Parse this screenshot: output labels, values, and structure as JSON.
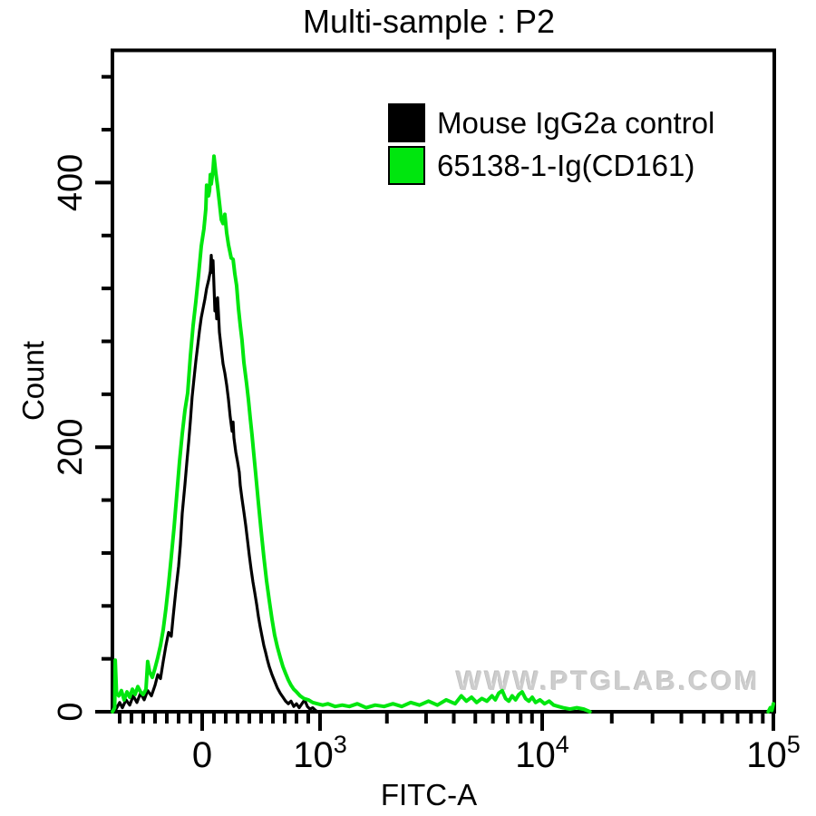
{
  "watermark": {
    "text": "WWW.PTGLAB.COM",
    "color": "#cdcdcd"
  },
  "chart_data": {
    "type": "line",
    "subtype": "flow-cytometry-histogram-overlay",
    "title": "Multi-sample : P2",
    "xlabel": "FITC-A",
    "ylabel": "Count",
    "x_scale": "logicle",
    "xlim": [
      -760,
      100000
    ],
    "ylim": [
      0,
      500
    ],
    "grid": false,
    "legend_position": "top-right-inside",
    "y_major_ticks": [
      0,
      200,
      400
    ],
    "y_minor_ticks": [
      40,
      80,
      120,
      160,
      240,
      280,
      320,
      360,
      440,
      480
    ],
    "x_major_ticks": [
      {
        "value": 0,
        "label": "0",
        "exp": ""
      },
      {
        "value": 1000,
        "label": "10",
        "exp": "3"
      },
      {
        "value": 10000,
        "label": "10",
        "exp": "4"
      },
      {
        "value": 100000,
        "label": "10",
        "exp": "5"
      }
    ],
    "x_minor_ticks": [
      -700,
      -600,
      -500,
      -400,
      -300,
      -200,
      -100,
      100,
      200,
      300,
      400,
      500,
      600,
      700,
      800,
      900,
      2000,
      3000,
      4000,
      5000,
      6000,
      7000,
      8000,
      9000,
      20000,
      30000,
      40000,
      50000,
      60000,
      70000,
      80000,
      90000
    ],
    "series": [
      {
        "name": "Mouse IgG2a control",
        "color": "#000000",
        "segments": [
          [
            [
              -761,
              0
            ],
            [
              -731,
              2
            ],
            [
              -700,
              7
            ],
            [
              -677,
              3
            ],
            [
              -646,
              9
            ],
            [
              -615,
              5
            ],
            [
              -585,
              12
            ],
            [
              -554,
              7
            ],
            [
              -523,
              14
            ],
            [
              -492,
              9
            ],
            [
              -462,
              16
            ],
            [
              -431,
              12
            ],
            [
              -400,
              20
            ],
            [
              -377,
              28
            ],
            [
              -354,
              25
            ],
            [
              -331,
              38
            ],
            [
              -308,
              50
            ],
            [
              -285,
              60
            ],
            [
              -262,
              57
            ],
            [
              -246,
              72
            ],
            [
              -223,
              92
            ],
            [
              -200,
              110
            ],
            [
              -185,
              126
            ],
            [
              -169,
              150
            ],
            [
              -146,
              172
            ],
            [
              -131,
              188
            ],
            [
              -115,
              204
            ],
            [
              -100,
              220
            ],
            [
              -85,
              238
            ],
            [
              -69,
              252
            ],
            [
              -54,
              265
            ],
            [
              -38,
              277
            ],
            [
              -23,
              288
            ],
            [
              -8,
              298
            ],
            [
              8,
              305
            ],
            [
              23,
              312
            ],
            [
              38,
              320
            ],
            [
              54,
              326
            ],
            [
              69,
              333
            ],
            [
              77,
              345
            ],
            [
              85,
              332
            ],
            [
              92,
              341
            ],
            [
              100,
              322
            ],
            [
              108,
              303
            ],
            [
              115,
              312
            ],
            [
              123,
              297
            ],
            [
              131,
              313
            ],
            [
              138,
              302
            ],
            [
              146,
              287
            ],
            [
              162,
              274
            ],
            [
              177,
              263
            ],
            [
              192,
              256
            ],
            [
              208,
              247
            ],
            [
              223,
              236
            ],
            [
              238,
              223
            ],
            [
              254,
              212
            ],
            [
              262,
              219
            ],
            [
              269,
              207
            ],
            [
              285,
              196
            ],
            [
              300,
              189
            ],
            [
              315,
              181
            ],
            [
              323,
              171
            ],
            [
              338,
              161
            ],
            [
              354,
              151
            ],
            [
              369,
              141
            ],
            [
              385,
              129
            ],
            [
              400,
              118
            ],
            [
              415,
              108
            ],
            [
              431,
              98
            ],
            [
              446,
              90
            ],
            [
              462,
              81
            ],
            [
              477,
              72
            ],
            [
              492,
              64
            ],
            [
              508,
              57
            ],
            [
              523,
              50
            ],
            [
              538,
              45
            ],
            [
              554,
              39
            ],
            [
              569,
              34
            ],
            [
              592,
              28
            ],
            [
              615,
              23
            ],
            [
              638,
              18
            ],
            [
              662,
              14
            ],
            [
              685,
              11
            ],
            [
              708,
              8
            ],
            [
              731,
              6
            ],
            [
              754,
              8
            ],
            [
              777,
              4
            ],
            [
              800,
              6
            ],
            [
              823,
              3
            ],
            [
              846,
              6
            ],
            [
              869,
              9
            ],
            [
              892,
              4
            ],
            [
              915,
              2
            ],
            [
              938,
              3
            ],
            [
              962,
              1
            ],
            [
              977,
              0
            ]
          ]
        ]
      },
      {
        "name": "65138-1-Ig(CD161)",
        "color": "#00e60e",
        "segments": [
          [
            [
              -761,
              0
            ],
            [
              -742,
              3
            ],
            [
              -738,
              39
            ],
            [
              -727,
              14
            ],
            [
              -708,
              12
            ],
            [
              -685,
              16
            ],
            [
              -662,
              9
            ],
            [
              -638,
              15
            ],
            [
              -615,
              11
            ],
            [
              -592,
              17
            ],
            [
              -569,
              13
            ],
            [
              -546,
              19
            ],
            [
              -523,
              15
            ],
            [
              -500,
              13
            ],
            [
              -477,
              17
            ],
            [
              -462,
              38
            ],
            [
              -446,
              30
            ],
            [
              -423,
              26
            ],
            [
              -400,
              33
            ],
            [
              -377,
              41
            ],
            [
              -354,
              50
            ],
            [
              -331,
              62
            ],
            [
              -308,
              78
            ],
            [
              -285,
              96
            ],
            [
              -262,
              117
            ],
            [
              -238,
              140
            ],
            [
              -215,
              165
            ],
            [
              -192,
              189
            ],
            [
              -169,
              210
            ],
            [
              -146,
              228
            ],
            [
              -123,
              241
            ],
            [
              -100,
              269
            ],
            [
              -77,
              292
            ],
            [
              -54,
              310
            ],
            [
              -31,
              330
            ],
            [
              -8,
              352
            ],
            [
              15,
              365
            ],
            [
              31,
              380
            ],
            [
              38,
              398
            ],
            [
              54,
              390
            ],
            [
              62,
              394
            ],
            [
              69,
              406
            ],
            [
              77,
              399
            ],
            [
              92,
              410
            ],
            [
              100,
              420
            ],
            [
              115,
              408
            ],
            [
              131,
              397
            ],
            [
              146,
              385
            ],
            [
              162,
              372
            ],
            [
              177,
              369
            ],
            [
              192,
              376
            ],
            [
              208,
              362
            ],
            [
              223,
              353
            ],
            [
              246,
              343
            ],
            [
              262,
              342
            ],
            [
              277,
              331
            ],
            [
              292,
              322
            ],
            [
              308,
              305
            ],
            [
              323,
              292
            ],
            [
              338,
              281
            ],
            [
              354,
              264
            ],
            [
              377,
              248
            ],
            [
              392,
              236
            ],
            [
              408,
              222
            ],
            [
              423,
              209
            ],
            [
              438,
              195
            ],
            [
              454,
              180
            ],
            [
              477,
              158
            ],
            [
              500,
              137
            ],
            [
              523,
              117
            ],
            [
              546,
              99
            ],
            [
              569,
              84
            ],
            [
              592,
              70
            ],
            [
              615,
              58
            ],
            [
              638,
              49
            ],
            [
              662,
              41
            ],
            [
              685,
              34
            ],
            [
              708,
              29
            ],
            [
              731,
              24
            ],
            [
              754,
              20
            ],
            [
              777,
              17
            ],
            [
              800,
              15
            ],
            [
              831,
              12
            ],
            [
              862,
              10
            ],
            [
              900,
              9
            ],
            [
              938,
              7
            ],
            [
              977,
              6
            ],
            [
              1028,
              5
            ],
            [
              1086,
              6
            ],
            [
              1170,
              4
            ],
            [
              1259,
              5
            ],
            [
              1355,
              4
            ],
            [
              1472,
              6
            ],
            [
              1614,
              3
            ],
            [
              1770,
              5
            ],
            [
              1941,
              4
            ],
            [
              2128,
              6
            ],
            [
              2333,
              4
            ],
            [
              2559,
              7
            ],
            [
              2805,
              5
            ],
            [
              3076,
              8
            ],
            [
              3373,
              5
            ],
            [
              3698,
              9
            ],
            [
              4055,
              6
            ],
            [
              4325,
              12
            ],
            [
              4560,
              8
            ],
            [
              4808,
              11
            ],
            [
              5070,
              7
            ],
            [
              5346,
              10
            ],
            [
              5636,
              8
            ],
            [
              5943,
              12
            ],
            [
              6154,
              9
            ],
            [
              6368,
              14
            ],
            [
              6607,
              16
            ],
            [
              6839,
              10
            ],
            [
              7079,
              8
            ],
            [
              7328,
              12
            ],
            [
              7586,
              9
            ],
            [
              7852,
              13
            ],
            [
              8128,
              15
            ],
            [
              8414,
              10
            ],
            [
              8710,
              8
            ],
            [
              9016,
              11
            ],
            [
              9333,
              7
            ],
            [
              9772,
              9
            ],
            [
              10233,
              6
            ],
            [
              10715,
              8
            ],
            [
              11220,
              5
            ],
            [
              11749,
              4
            ],
            [
              12303,
              3
            ],
            [
              13183,
              2
            ],
            [
              14125,
              3
            ],
            [
              15136,
              2
            ],
            [
              16100,
              0
            ]
          ],
          [
            [
              95000,
              0
            ],
            [
              97000,
              3
            ],
            [
              98500,
              1
            ],
            [
              100000,
              6
            ]
          ]
        ]
      }
    ]
  }
}
